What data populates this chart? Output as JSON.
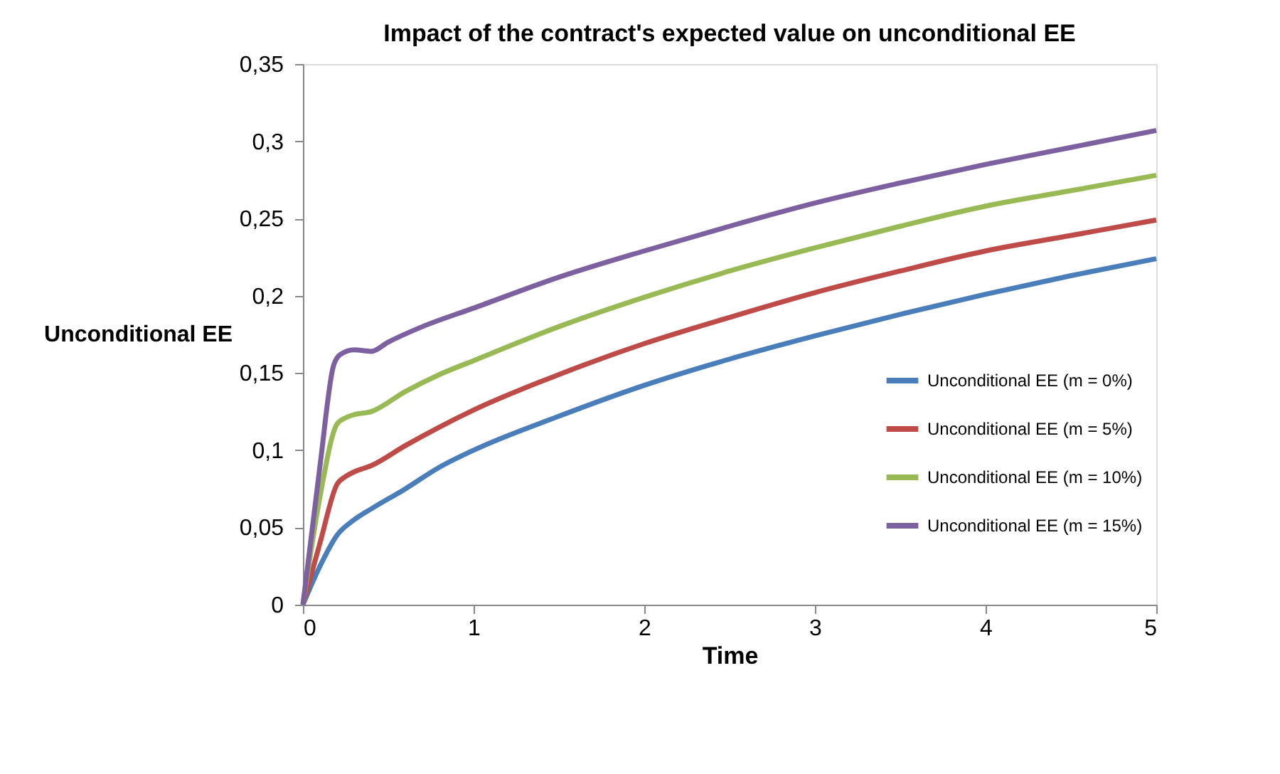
{
  "chart_data": {
    "type": "line",
    "title": "Impact of the contract's expected value on unconditional EE",
    "xlabel": "Time",
    "ylabel": "Unconditional EE",
    "xlim": [
      0,
      5
    ],
    "xticks": [
      0,
      1,
      2,
      3,
      4,
      5
    ],
    "ylim": [
      0,
      0.35
    ],
    "yticks": [
      {
        "value": 0,
        "label": "0"
      },
      {
        "value": 0.05,
        "label": "0,05"
      },
      {
        "value": 0.1,
        "label": "0,1"
      },
      {
        "value": 0.15,
        "label": "0,15"
      },
      {
        "value": 0.2,
        "label": "0,2"
      },
      {
        "value": 0.25,
        "label": "0,25"
      },
      {
        "value": 0.3,
        "label": "0,3"
      },
      {
        "value": 0.35,
        "label": "0,35"
      }
    ],
    "grid": false,
    "legend": "right",
    "marker": "none",
    "line_style": "solid",
    "series": [
      {
        "name": "Unconditional EE (m = 0%)",
        "color": "#4a7ebb",
        "x": [
          0,
          0.1,
          0.2,
          0.3,
          0.4,
          0.6,
          0.8,
          1,
          1.5,
          2,
          2.5,
          3,
          3.5,
          4,
          4.5,
          5
        ],
        "values": [
          0,
          0.025,
          0.045,
          0.055,
          0.062,
          0.075,
          0.089,
          0.1,
          0.122,
          0.142,
          0.159,
          0.174,
          0.188,
          0.201,
          0.213,
          0.224
        ]
      },
      {
        "name": "Unconditional EE (m = 5%)",
        "color": "#be4b48",
        "x": [
          0,
          0.1,
          0.2,
          0.25,
          0.3,
          0.4,
          0.6,
          0.8,
          1,
          1.5,
          2,
          2.5,
          3,
          3.5,
          4,
          4.5,
          5
        ],
        "values": [
          0,
          0.04,
          0.078,
          0.083,
          0.086,
          0.09,
          0.103,
          0.115,
          0.126,
          0.149,
          0.169,
          0.186,
          0.202,
          0.216,
          0.229,
          0.239,
          0.249
        ]
      },
      {
        "name": "Unconditional EE (m = 10%)",
        "color": "#98b954",
        "x": [
          0,
          0.1,
          0.2,
          0.25,
          0.3,
          0.4,
          0.6,
          0.8,
          1,
          1.5,
          2,
          2.5,
          3,
          3.5,
          4,
          4.5,
          5
        ],
        "values": [
          0,
          0.07,
          0.117,
          0.121,
          0.123,
          0.125,
          0.138,
          0.149,
          0.158,
          0.18,
          0.199,
          0.216,
          0.231,
          0.245,
          0.258,
          0.268,
          0.278
        ]
      },
      {
        "name": "Unconditional EE (m = 15%)",
        "color": "#7d60a0",
        "x": [
          0,
          0.1,
          0.18,
          0.22,
          0.3,
          0.4,
          0.5,
          0.7,
          1,
          1.5,
          2,
          2.5,
          3,
          3.5,
          4,
          4.5,
          5
        ],
        "values": [
          0,
          0.09,
          0.155,
          0.162,
          0.165,
          0.164,
          0.17,
          0.18,
          0.192,
          0.212,
          0.229,
          0.245,
          0.26,
          0.273,
          0.285,
          0.296,
          0.307
        ]
      }
    ]
  }
}
